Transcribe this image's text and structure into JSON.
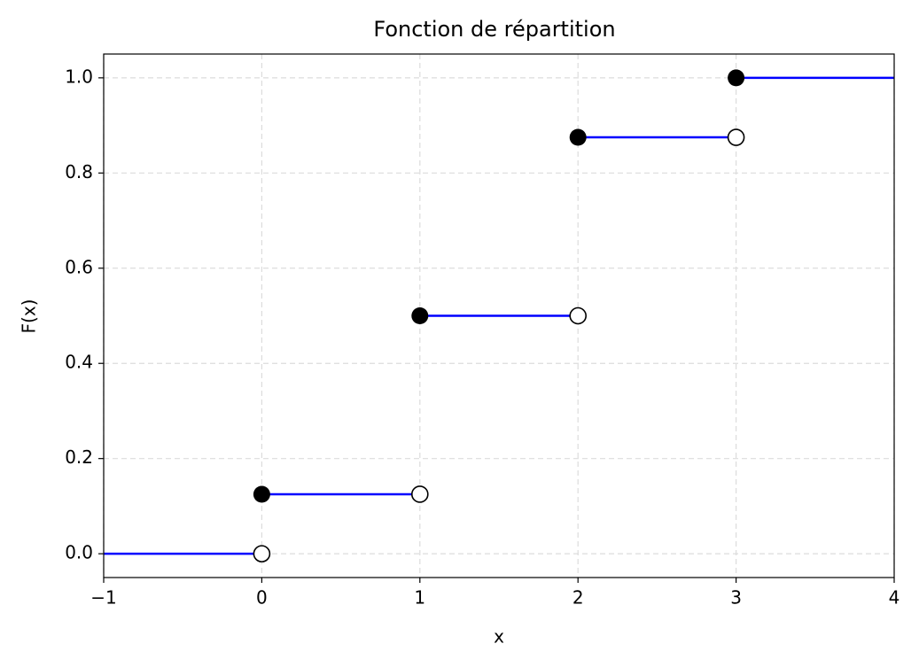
{
  "chart_data": {
    "type": "step",
    "title": "Fonction de répartition",
    "x_label": "x",
    "y_label": "F(x)",
    "series": [
      {
        "x_start": [
          -1,
          0,
          1,
          2,
          3
        ],
        "x_end": [
          0,
          1,
          2,
          3,
          4
        ],
        "values": [
          0,
          0.125,
          0.5,
          0.875,
          1
        ],
        "color": "#0000ff",
        "marker_color": "#000000"
      }
    ],
    "xlim": [
      -1,
      4
    ],
    "xticks": [
      {
        "value": -1,
        "label": "−1"
      },
      0,
      1,
      2,
      3,
      4
    ],
    "ylim": [
      -0.05,
      1.05
    ],
    "yticks": [
      {
        "value": 0,
        "label": "0.0"
      },
      0.2,
      0.4,
      0.6,
      0.8,
      {
        "value": 1,
        "label": "1.0"
      }
    ],
    "grid": true
  }
}
